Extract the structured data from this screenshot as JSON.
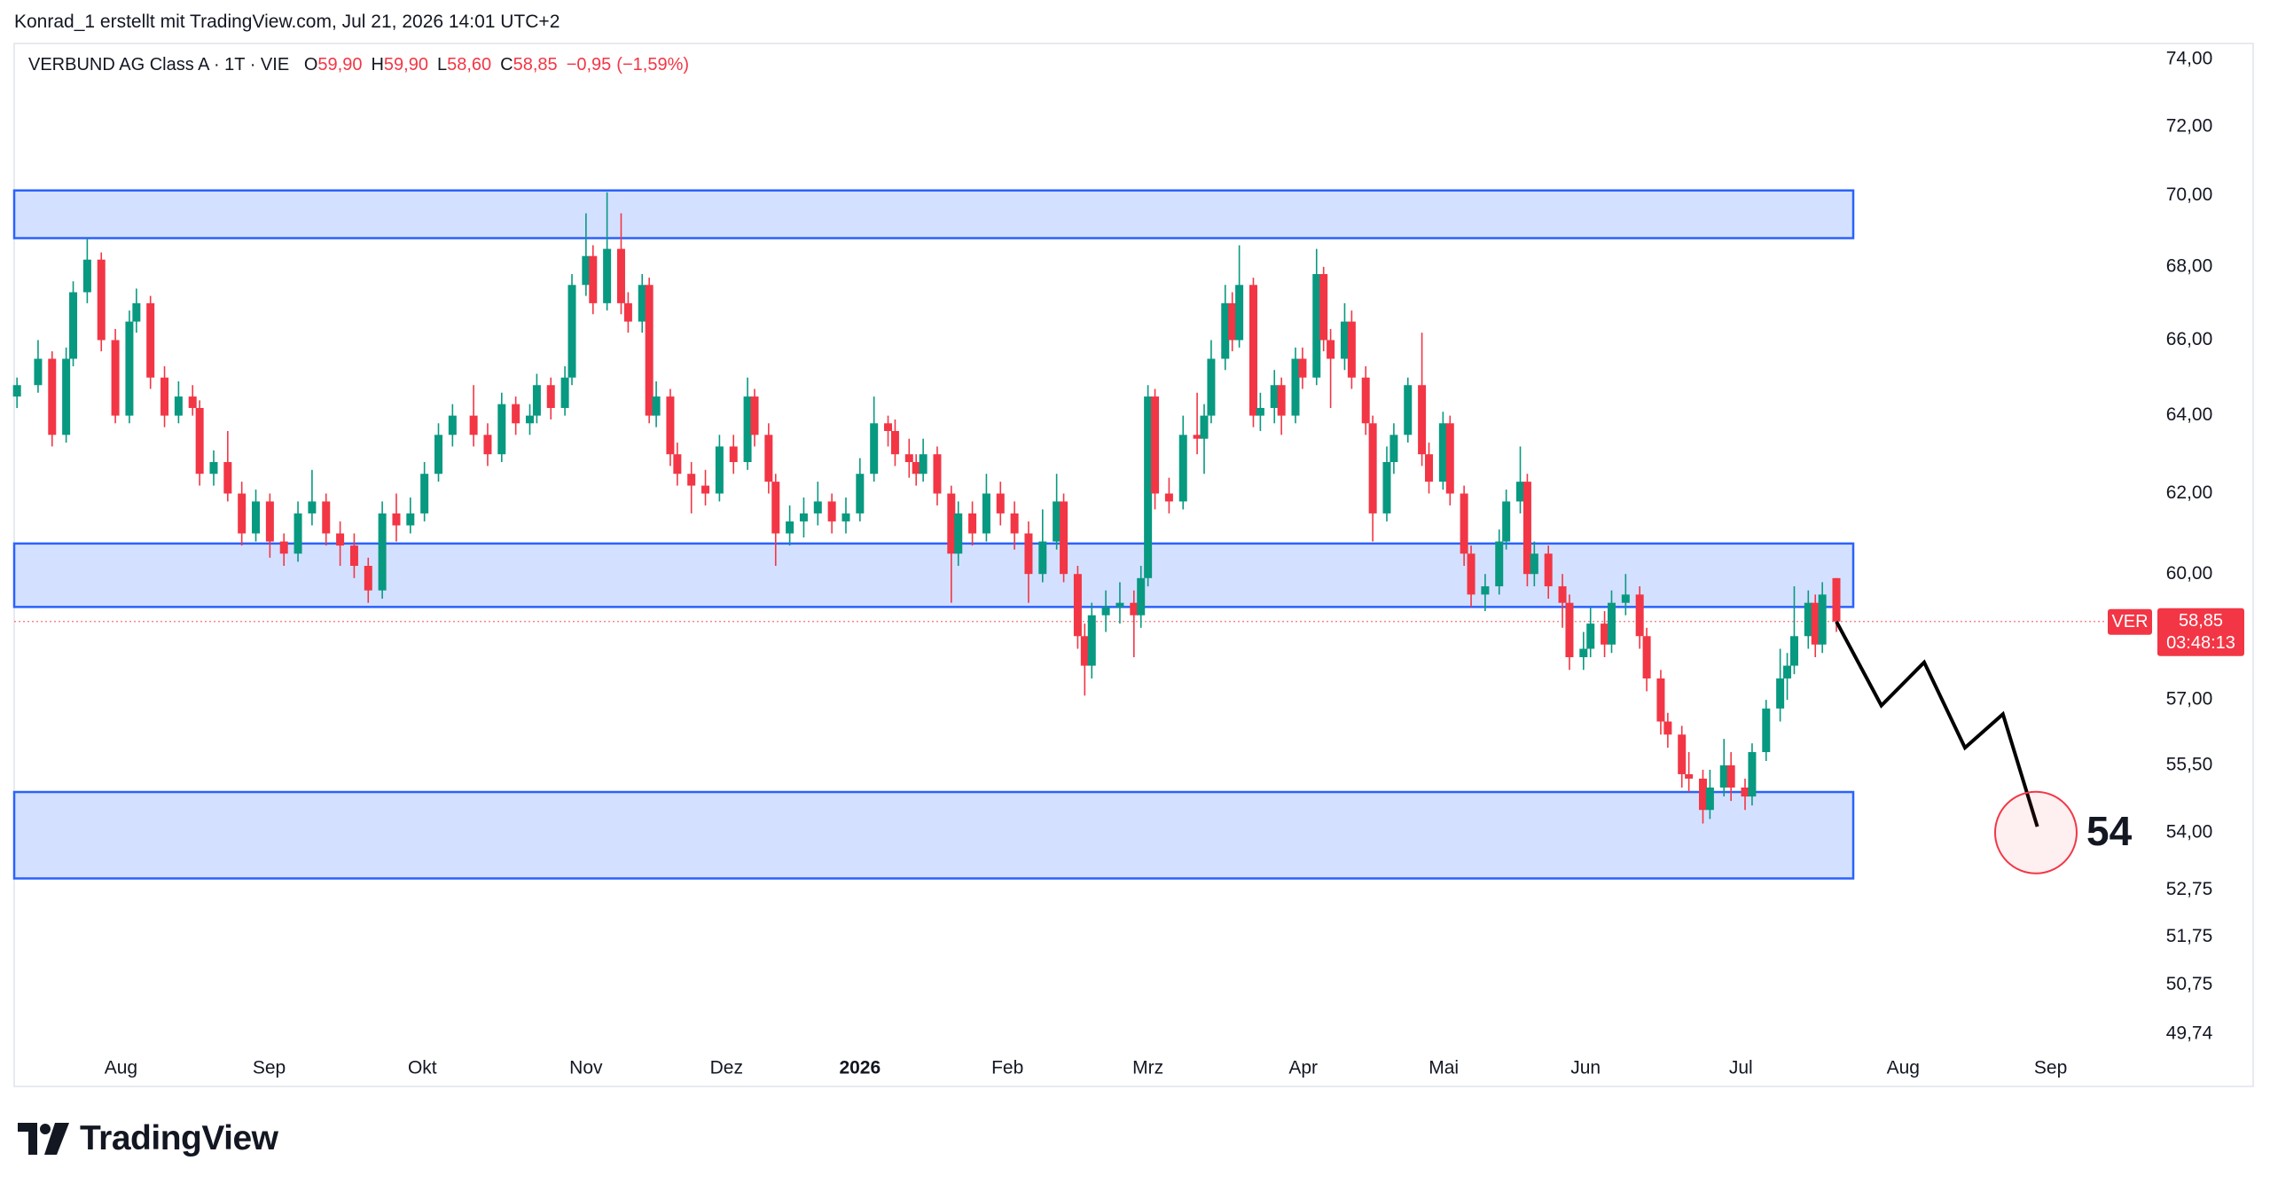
{
  "header": "Konrad_1 erstellt mit TradingView.com, Jul 21, 2026 14:01 UTC+2",
  "brand": "TradingView",
  "chart_data": {
    "type": "candlestick",
    "legend": {
      "symbol": "VERBUND AG Class A · 1T · VIE",
      "ohlc": [
        {
          "key": "O",
          "value": 59.9,
          "label": "59,90"
        },
        {
          "key": "H",
          "value": 59.9,
          "label": "59,90"
        },
        {
          "key": "L",
          "value": 58.6,
          "label": "58,60"
        },
        {
          "key": "C",
          "value": 58.85,
          "label": "58,85"
        }
      ],
      "change": {
        "value": -0.95,
        "label": "−0,95"
      },
      "change_pct": {
        "value": -1.59,
        "label": "(−1,59%)"
      }
    },
    "log_scale": true,
    "grid": false,
    "up_color": "#089981",
    "down_color": "#f23645",
    "xlim": [
      -0.4,
      297.5
    ],
    "xticks": [
      {
        "value": 14.8,
        "label": "Aug"
      },
      {
        "value": 35.9,
        "label": "Sep"
      },
      {
        "value": 57.7,
        "label": "Okt"
      },
      {
        "value": 81.0,
        "label": "Nov"
      },
      {
        "value": 101.0,
        "label": "Dez"
      },
      {
        "value": 120.0,
        "label": "2026"
      },
      {
        "value": 141.0,
        "label": "Feb"
      },
      {
        "value": 161.0,
        "label": "Mrz"
      },
      {
        "value": 183.1,
        "label": "Apr"
      },
      {
        "value": 203.1,
        "label": "Mai"
      },
      {
        "value": 223.3,
        "label": "Jun"
      },
      {
        "value": 245.4,
        "label": "Jul"
      },
      {
        "value": 268.5,
        "label": "Aug"
      },
      {
        "value": 289.5,
        "label": "Sep"
      }
    ],
    "ylim": [
      49.42,
      74.48
    ],
    "yticks": [
      {
        "value": 74,
        "label": "74,00"
      },
      {
        "value": 72,
        "label": "72,00"
      },
      {
        "value": 70,
        "label": "70,00"
      },
      {
        "value": 68,
        "label": "68,00"
      },
      {
        "value": 66,
        "label": "66,00"
      },
      {
        "value": 64,
        "label": "64,00"
      },
      {
        "value": 62,
        "label": "62,00"
      },
      {
        "value": 60,
        "label": "60,00"
      },
      {
        "value": 57,
        "label": "57,00"
      },
      {
        "value": 55.5,
        "label": "55,50"
      },
      {
        "value": 54,
        "label": "54,00"
      },
      {
        "value": 52.75,
        "label": "52,75"
      },
      {
        "value": 51.75,
        "label": "51,75"
      },
      {
        "value": 50.75,
        "label": "50,75"
      },
      {
        "value": 49.74,
        "label": "49,74"
      }
    ],
    "zones": [
      {
        "low": 68.8,
        "high": 70.15,
        "x_end": 261.4
      },
      {
        "low": 59.2,
        "high": 60.75,
        "x_end": 261.4
      },
      {
        "low": 53.0,
        "high": 54.9,
        "x_end": 261.4
      }
    ],
    "projection": {
      "x": [
        259,
        265.4,
        271.5,
        277.3,
        282.7,
        287.6
      ],
      "values": [
        58.85,
        56.87,
        57.88,
        55.9,
        56.67,
        54.13
      ]
    },
    "target": {
      "x": 287.4,
      "value": 54
    },
    "last_price": {
      "value": 58.85,
      "label": "58,85",
      "symbol": "VER",
      "countdown": "03:48:13"
    },
    "candles": [
      [
        0,
        64.5,
        65.0,
        64.2,
        64.8
      ],
      [
        3,
        64.8,
        66.0,
        64.6,
        65.5
      ],
      [
        5,
        65.5,
        65.7,
        63.2,
        63.5
      ],
      [
        7,
        63.5,
        65.8,
        63.3,
        65.5
      ],
      [
        8,
        65.5,
        67.6,
        65.3,
        67.3
      ],
      [
        10,
        67.3,
        68.8,
        67.0,
        68.2
      ],
      [
        12,
        68.2,
        68.4,
        65.7,
        66.0
      ],
      [
        14,
        66.0,
        66.3,
        63.8,
        64.0
      ],
      [
        16,
        64.0,
        66.8,
        63.8,
        66.5
      ],
      [
        17,
        66.5,
        67.4,
        66.2,
        67.0
      ],
      [
        19,
        67.0,
        67.2,
        64.7,
        65.0
      ],
      [
        21,
        65.0,
        65.3,
        63.7,
        64.0
      ],
      [
        23,
        64.0,
        64.9,
        63.8,
        64.5
      ],
      [
        25,
        64.5,
        64.8,
        64.0,
        64.2
      ],
      [
        26,
        64.2,
        64.4,
        62.2,
        62.5
      ],
      [
        28,
        62.5,
        63.1,
        62.2,
        62.8
      ],
      [
        30,
        62.8,
        63.6,
        61.8,
        62.0
      ],
      [
        32,
        62.0,
        62.3,
        60.7,
        61.0
      ],
      [
        34,
        61.0,
        62.1,
        60.8,
        61.8
      ],
      [
        36,
        61.8,
        62.0,
        60.4,
        60.8
      ],
      [
        38,
        60.8,
        61.0,
        60.2,
        60.5
      ],
      [
        40,
        60.5,
        61.8,
        60.3,
        61.5
      ],
      [
        42,
        61.5,
        62.6,
        61.2,
        61.8
      ],
      [
        44,
        61.8,
        62.0,
        60.7,
        61.0
      ],
      [
        46,
        61.0,
        61.3,
        60.2,
        60.7
      ],
      [
        48,
        60.7,
        61.0,
        59.9,
        60.2
      ],
      [
        50,
        60.2,
        60.4,
        59.3,
        59.6
      ],
      [
        52,
        59.6,
        61.8,
        59.4,
        61.5
      ],
      [
        54,
        61.5,
        62.0,
        60.8,
        61.2
      ],
      [
        56,
        61.2,
        61.9,
        61.0,
        61.5
      ],
      [
        58,
        61.5,
        62.8,
        61.3,
        62.5
      ],
      [
        60,
        62.5,
        63.8,
        62.3,
        63.5
      ],
      [
        62,
        63.5,
        64.3,
        63.2,
        64.0
      ],
      [
        65,
        64.0,
        64.8,
        63.2,
        63.5
      ],
      [
        67,
        63.5,
        63.8,
        62.7,
        63.0
      ],
      [
        69,
        63.0,
        64.6,
        62.8,
        64.3
      ],
      [
        71,
        64.3,
        64.5,
        63.5,
        63.8
      ],
      [
        73,
        63.8,
        64.3,
        63.5,
        64.0
      ],
      [
        74,
        64.0,
        65.1,
        63.8,
        64.8
      ],
      [
        76,
        64.8,
        65.0,
        63.9,
        64.2
      ],
      [
        78,
        64.2,
        65.3,
        64.0,
        65.0
      ],
      [
        79,
        65.0,
        67.8,
        64.8,
        67.5
      ],
      [
        81,
        67.5,
        69.5,
        67.2,
        68.3
      ],
      [
        82,
        68.3,
        68.6,
        66.7,
        67.0
      ],
      [
        84,
        67.0,
        70.1,
        66.8,
        68.5
      ],
      [
        86,
        68.5,
        69.5,
        66.7,
        67.0
      ],
      [
        87,
        67.0,
        67.3,
        66.2,
        66.5
      ],
      [
        89,
        66.5,
        67.8,
        66.2,
        67.5
      ],
      [
        90,
        67.5,
        67.7,
        63.8,
        64.0
      ],
      [
        91,
        64.0,
        64.9,
        63.7,
        64.5
      ],
      [
        93,
        64.5,
        64.7,
        62.7,
        63.0
      ],
      [
        94,
        63.0,
        63.3,
        62.2,
        62.5
      ],
      [
        96,
        62.5,
        62.8,
        61.5,
        62.2
      ],
      [
        98,
        62.2,
        62.6,
        61.7,
        62.0
      ],
      [
        100,
        62.0,
        63.5,
        61.8,
        63.2
      ],
      [
        102,
        63.2,
        63.5,
        62.5,
        62.8
      ],
      [
        104,
        62.8,
        65.0,
        62.6,
        64.5
      ],
      [
        105,
        64.5,
        64.7,
        63.2,
        63.5
      ],
      [
        107,
        63.5,
        63.8,
        62.0,
        62.3
      ],
      [
        108,
        62.3,
        62.5,
        60.2,
        61.0
      ],
      [
        110,
        61.0,
        61.7,
        60.7,
        61.3
      ],
      [
        112,
        61.3,
        61.9,
        60.9,
        61.5
      ],
      [
        114,
        61.5,
        62.3,
        61.2,
        61.8
      ],
      [
        116,
        61.8,
        62.0,
        61.0,
        61.3
      ],
      [
        118,
        61.3,
        61.9,
        61.0,
        61.5
      ],
      [
        120,
        61.5,
        62.9,
        61.3,
        62.5
      ],
      [
        122,
        62.5,
        64.5,
        62.3,
        63.8
      ],
      [
        124,
        63.8,
        64.0,
        63.2,
        63.6
      ],
      [
        125,
        63.6,
        63.9,
        62.7,
        63.0
      ],
      [
        127,
        63.0,
        63.4,
        62.4,
        62.8
      ],
      [
        128,
        62.8,
        63.0,
        62.2,
        62.5
      ],
      [
        129,
        62.5,
        63.4,
        62.3,
        63.0
      ],
      [
        131,
        63.0,
        63.2,
        61.7,
        62.0
      ],
      [
        133,
        62.0,
        62.2,
        59.3,
        60.5
      ],
      [
        134,
        60.5,
        61.8,
        60.2,
        61.5
      ],
      [
        136,
        61.5,
        61.8,
        60.7,
        61.0
      ],
      [
        138,
        61.0,
        62.5,
        60.8,
        62.0
      ],
      [
        140,
        62.0,
        62.3,
        61.2,
        61.5
      ],
      [
        142,
        61.5,
        61.8,
        60.6,
        61.0
      ],
      [
        144,
        61.0,
        61.3,
        59.3,
        60.0
      ],
      [
        146,
        60.0,
        61.6,
        59.8,
        60.8
      ],
      [
        148,
        60.8,
        62.5,
        60.6,
        61.8
      ],
      [
        149,
        61.8,
        62.0,
        59.8,
        60.0
      ],
      [
        151,
        60.0,
        60.2,
        58.2,
        58.5
      ],
      [
        152,
        58.5,
        58.8,
        57.1,
        57.8
      ],
      [
        153,
        57.8,
        59.3,
        57.5,
        59.0
      ],
      [
        155,
        59.0,
        59.6,
        58.6,
        59.2
      ],
      [
        157,
        59.2,
        59.8,
        58.8,
        59.3
      ],
      [
        159,
        59.3,
        59.6,
        58.0,
        59.0
      ],
      [
        160,
        59.0,
        60.2,
        58.7,
        59.9
      ],
      [
        161,
        59.9,
        64.8,
        59.7,
        64.5
      ],
      [
        162,
        64.5,
        64.7,
        61.6,
        62.0
      ],
      [
        164,
        62.0,
        62.4,
        61.5,
        61.8
      ],
      [
        166,
        61.8,
        64.0,
        61.6,
        63.5
      ],
      [
        168,
        63.5,
        64.6,
        63.0,
        63.4
      ],
      [
        169,
        63.4,
        64.3,
        62.5,
        64.0
      ],
      [
        170,
        64.0,
        66.0,
        63.8,
        65.5
      ],
      [
        172,
        65.5,
        67.5,
        65.2,
        67.0
      ],
      [
        173,
        67.0,
        67.3,
        65.7,
        66.0
      ],
      [
        174,
        66.0,
        68.6,
        65.8,
        67.5
      ],
      [
        176,
        67.5,
        67.7,
        63.7,
        64.0
      ],
      [
        177,
        64.0,
        64.6,
        63.6,
        64.2
      ],
      [
        179,
        64.2,
        65.2,
        63.8,
        64.8
      ],
      [
        180,
        64.8,
        65.0,
        63.5,
        64.0
      ],
      [
        182,
        64.0,
        65.8,
        63.8,
        65.5
      ],
      [
        183,
        65.5,
        65.8,
        64.7,
        65.0
      ],
      [
        185,
        65.0,
        68.5,
        64.8,
        67.8
      ],
      [
        186,
        67.8,
        68.0,
        65.7,
        66.0
      ],
      [
        187,
        66.0,
        66.3,
        64.2,
        65.5
      ],
      [
        189,
        65.5,
        67.0,
        65.2,
        66.5
      ],
      [
        190,
        66.5,
        66.8,
        64.7,
        65.0
      ],
      [
        192,
        65.0,
        65.3,
        63.5,
        63.8
      ],
      [
        193,
        63.8,
        64.0,
        60.8,
        61.5
      ],
      [
        195,
        61.5,
        63.2,
        61.3,
        62.8
      ],
      [
        196,
        62.8,
        63.8,
        62.5,
        63.5
      ],
      [
        198,
        63.5,
        65.0,
        63.3,
        64.8
      ],
      [
        200,
        64.8,
        66.2,
        62.7,
        63.0
      ],
      [
        201,
        63.0,
        63.3,
        62.0,
        62.3
      ],
      [
        203,
        62.3,
        64.1,
        62.1,
        63.8
      ],
      [
        204,
        63.8,
        64.0,
        61.7,
        62.0
      ],
      [
        206,
        62.0,
        62.2,
        60.2,
        60.5
      ],
      [
        207,
        60.5,
        60.7,
        59.2,
        59.5
      ],
      [
        209,
        59.5,
        60.0,
        59.1,
        59.7
      ],
      [
        211,
        59.7,
        61.1,
        59.5,
        60.8
      ],
      [
        212,
        60.8,
        62.1,
        60.6,
        61.8
      ],
      [
        214,
        61.8,
        63.2,
        61.5,
        62.3
      ],
      [
        215,
        62.3,
        62.5,
        59.7,
        60.0
      ],
      [
        216,
        60.0,
        60.8,
        59.7,
        60.5
      ],
      [
        218,
        60.5,
        60.7,
        59.4,
        59.7
      ],
      [
        220,
        59.7,
        60.0,
        58.7,
        59.3
      ],
      [
        221,
        59.3,
        59.5,
        57.7,
        58.0
      ],
      [
        223,
        58.0,
        58.6,
        57.7,
        58.2
      ],
      [
        224,
        58.2,
        59.2,
        58.0,
        58.8
      ],
      [
        226,
        58.8,
        59.1,
        58.0,
        58.3
      ],
      [
        227,
        58.3,
        59.6,
        58.1,
        59.3
      ],
      [
        229,
        59.3,
        60.0,
        59.0,
        59.5
      ],
      [
        231,
        59.5,
        59.7,
        58.2,
        58.5
      ],
      [
        232,
        58.5,
        58.7,
        57.2,
        57.5
      ],
      [
        234,
        57.5,
        57.7,
        56.2,
        56.5
      ],
      [
        235,
        56.5,
        56.7,
        55.9,
        56.2
      ],
      [
        237,
        56.2,
        56.4,
        55.0,
        55.3
      ],
      [
        238,
        55.3,
        55.8,
        54.9,
        55.2
      ],
      [
        240,
        55.2,
        55.4,
        54.2,
        54.5
      ],
      [
        241,
        54.5,
        55.4,
        54.3,
        55.0
      ],
      [
        243,
        55.0,
        56.1,
        54.8,
        55.5
      ],
      [
        244,
        55.5,
        55.8,
        54.7,
        55.0
      ],
      [
        246,
        55.0,
        55.2,
        54.5,
        54.8
      ],
      [
        247,
        54.8,
        56.0,
        54.6,
        55.8
      ],
      [
        249,
        55.8,
        57.0,
        55.6,
        56.8
      ],
      [
        251,
        56.8,
        58.2,
        56.5,
        57.5
      ],
      [
        252,
        57.5,
        58.1,
        57.0,
        57.8
      ],
      [
        253,
        57.8,
        59.7,
        57.6,
        58.5
      ],
      [
        255,
        58.5,
        59.6,
        58.2,
        59.3
      ],
      [
        256,
        59.3,
        59.5,
        58.0,
        58.3
      ],
      [
        257,
        58.3,
        59.8,
        58.1,
        59.5
      ],
      [
        259,
        59.9,
        59.9,
        58.6,
        58.85
      ]
    ]
  }
}
